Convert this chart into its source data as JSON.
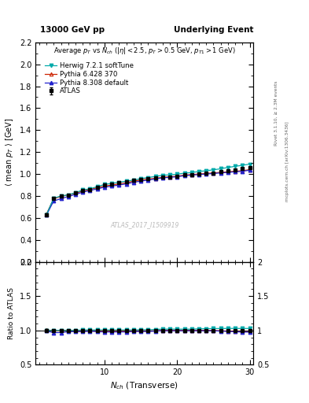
{
  "title_left": "13000 GeV pp",
  "title_right": "Underlying Event",
  "plot_title": "Average $p_T$ vs $N_{ch}$ ($|\\eta| < 2.5$, $p_T > 0.5$ GeV, $p_{T1} > 1$ GeV)",
  "xlabel": "$N_{ch}$ (Transverse)",
  "ylabel_main": "$\\langle$ mean $p_T$ $\\rangle$ [GeV]",
  "ylabel_ratio": "Ratio to ATLAS",
  "watermark": "ATLAS_2017_I1509919",
  "right_label": "mcplots.cern.ch [arXiv:1306.3436]",
  "right_label2": "Rivet 3.1.10, ≥ 2.3M events",
  "ylim_main": [
    0.2,
    2.2
  ],
  "ylim_ratio": [
    0.5,
    2.0
  ],
  "xdata": [
    2,
    3,
    4,
    5,
    6,
    7,
    8,
    9,
    10,
    11,
    12,
    13,
    14,
    15,
    16,
    17,
    18,
    19,
    20,
    21,
    22,
    23,
    24,
    25,
    26,
    27,
    28,
    29,
    30
  ],
  "atlas_y": [
    0.63,
    0.78,
    0.8,
    0.81,
    0.83,
    0.85,
    0.86,
    0.88,
    0.9,
    0.91,
    0.92,
    0.93,
    0.94,
    0.95,
    0.96,
    0.965,
    0.97,
    0.975,
    0.98,
    0.99,
    0.995,
    1.0,
    1.005,
    1.01,
    1.02,
    1.03,
    1.04,
    1.05,
    1.06
  ],
  "atlas_err": [
    0.012,
    0.009,
    0.008,
    0.007,
    0.006,
    0.006,
    0.005,
    0.005,
    0.005,
    0.004,
    0.004,
    0.004,
    0.004,
    0.004,
    0.004,
    0.004,
    0.004,
    0.004,
    0.004,
    0.004,
    0.004,
    0.004,
    0.004,
    0.004,
    0.004,
    0.005,
    0.005,
    0.005,
    0.006
  ],
  "herwig_y": [
    0.63,
    0.78,
    0.8,
    0.81,
    0.83,
    0.855,
    0.865,
    0.885,
    0.905,
    0.915,
    0.925,
    0.935,
    0.945,
    0.958,
    0.968,
    0.978,
    0.988,
    0.993,
    0.998,
    1.008,
    1.013,
    1.023,
    1.03,
    1.038,
    1.048,
    1.06,
    1.07,
    1.08,
    1.09
  ],
  "pythia6_y": [
    0.635,
    0.775,
    0.795,
    0.81,
    0.825,
    0.845,
    0.86,
    0.875,
    0.89,
    0.9,
    0.91,
    0.92,
    0.935,
    0.945,
    0.955,
    0.96,
    0.97,
    0.975,
    0.98,
    0.99,
    0.995,
    1.0,
    1.005,
    1.01,
    1.015,
    1.02,
    1.025,
    1.03,
    1.04
  ],
  "pythia8_y": [
    0.625,
    0.755,
    0.775,
    0.795,
    0.815,
    0.835,
    0.85,
    0.865,
    0.88,
    0.89,
    0.9,
    0.91,
    0.925,
    0.935,
    0.945,
    0.955,
    0.965,
    0.97,
    0.975,
    0.985,
    0.99,
    0.995,
    1.0,
    1.005,
    1.01,
    1.015,
    1.02,
    1.025,
    1.035
  ],
  "color_atlas": "#000000",
  "color_herwig": "#00aaaa",
  "color_pythia6": "#cc2200",
  "color_pythia8": "#2222cc",
  "legend_labels": [
    "ATLAS",
    "Herwig 7.2.1 softTune",
    "Pythia 6.428 370",
    "Pythia 8.308 default"
  ]
}
